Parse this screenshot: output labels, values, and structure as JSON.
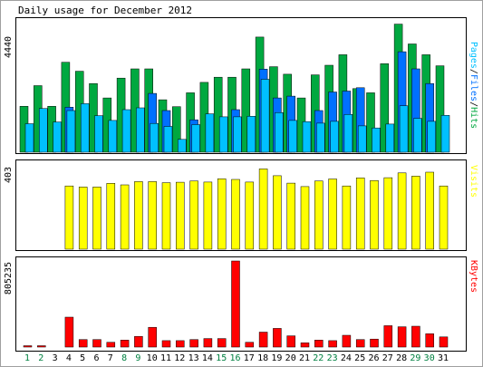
{
  "title": "Daily usage for December 2012",
  "colors": {
    "hits": "#00a840",
    "files": "#0070ff",
    "pages": "#00c0ff",
    "visits": "#ffff00",
    "kbytes": "#ff0000",
    "weekend_label": "#008040",
    "weekday_label": "#000000",
    "panel_border": "#000000",
    "background": "#ffffff"
  },
  "chart_data": [
    {
      "type": "bar",
      "panel": "hits-files-pages",
      "ymax_label": "4440",
      "ylim": [
        0,
        4440
      ],
      "legend": {
        "pages": "Pages",
        "files": "Files",
        "hits": "Hits",
        "sep": "/"
      },
      "categories": [
        "1",
        "2",
        "3",
        "4",
        "5",
        "6",
        "7",
        "8",
        "9",
        "10",
        "11",
        "12",
        "13",
        "14",
        "15",
        "16",
        "17",
        "18",
        "19",
        "20",
        "21",
        "22",
        "23",
        "24",
        "25",
        "26",
        "27",
        "28",
        "29",
        "30",
        "31"
      ],
      "series": [
        {
          "name": "Hits",
          "values": [
            1530,
            2220,
            1530,
            3000,
            2700,
            2290,
            1810,
            2470,
            2780,
            2780,
            1750,
            1520,
            1980,
            2330,
            2500,
            2500,
            2780,
            3840,
            2850,
            2600,
            1810,
            2580,
            2900,
            3250,
            2120,
            1980,
            2950,
            4270,
            3610,
            3250,
            2880
          ]
        },
        {
          "name": "Files",
          "values": [
            0,
            0,
            0,
            1500,
            0,
            0,
            0,
            0,
            0,
            1960,
            1390,
            0,
            1080,
            0,
            0,
            1420,
            0,
            2770,
            1810,
            1870,
            0,
            1390,
            2010,
            2040,
            2150,
            0,
            0,
            3350,
            2780,
            2290,
            0
          ]
        },
        {
          "name": "Pages",
          "values": [
            950,
            1460,
            1010,
            1390,
            1620,
            1220,
            1060,
            1420,
            1480,
            960,
            860,
            430,
            920,
            1280,
            1180,
            1180,
            1200,
            2430,
            1320,
            1060,
            1020,
            970,
            1030,
            1260,
            880,
            810,
            940,
            1550,
            1130,
            1030,
            1230
          ]
        }
      ]
    },
    {
      "type": "bar",
      "panel": "visits",
      "ymax_label": "403",
      "ylim": [
        0,
        403
      ],
      "legend": "Visits",
      "categories": [
        "1",
        "2",
        "3",
        "4",
        "5",
        "6",
        "7",
        "8",
        "9",
        "10",
        "11",
        "12",
        "13",
        "14",
        "15",
        "16",
        "17",
        "18",
        "19",
        "20",
        "21",
        "22",
        "23",
        "24",
        "25",
        "26",
        "27",
        "28",
        "29",
        "30",
        "31"
      ],
      "series": [
        {
          "name": "Visits",
          "values": [
            0,
            0,
            0,
            290,
            285,
            285,
            302,
            295,
            310,
            310,
            305,
            307,
            313,
            308,
            323,
            320,
            308,
            368,
            337,
            303,
            287,
            313,
            322,
            290,
            327,
            315,
            328,
            350,
            335,
            353,
            290
          ]
        }
      ]
    },
    {
      "type": "bar",
      "panel": "kbytes",
      "ymax_label": "805235",
      "ylim": [
        0,
        805235
      ],
      "legend": "KBytes",
      "categories": [
        "1",
        "2",
        "3",
        "4",
        "5",
        "6",
        "7",
        "8",
        "9",
        "10",
        "11",
        "12",
        "13",
        "14",
        "15",
        "16",
        "17",
        "18",
        "19",
        "20",
        "21",
        "22",
        "23",
        "24",
        "25",
        "26",
        "27",
        "28",
        "29",
        "30",
        "31"
      ],
      "series": [
        {
          "name": "KBytes",
          "values": [
            4000,
            4000,
            0,
            280000,
            70000,
            70000,
            45000,
            65000,
            100000,
            185000,
            60000,
            60000,
            70000,
            80000,
            80000,
            805235,
            45000,
            140000,
            175000,
            105000,
            40000,
            65000,
            60000,
            110000,
            70000,
            75000,
            200000,
            190000,
            195000,
            125000,
            95000
          ]
        }
      ]
    }
  ],
  "weekend_days": [
    1,
    2,
    8,
    9,
    15,
    16,
    22,
    23,
    29,
    30
  ]
}
